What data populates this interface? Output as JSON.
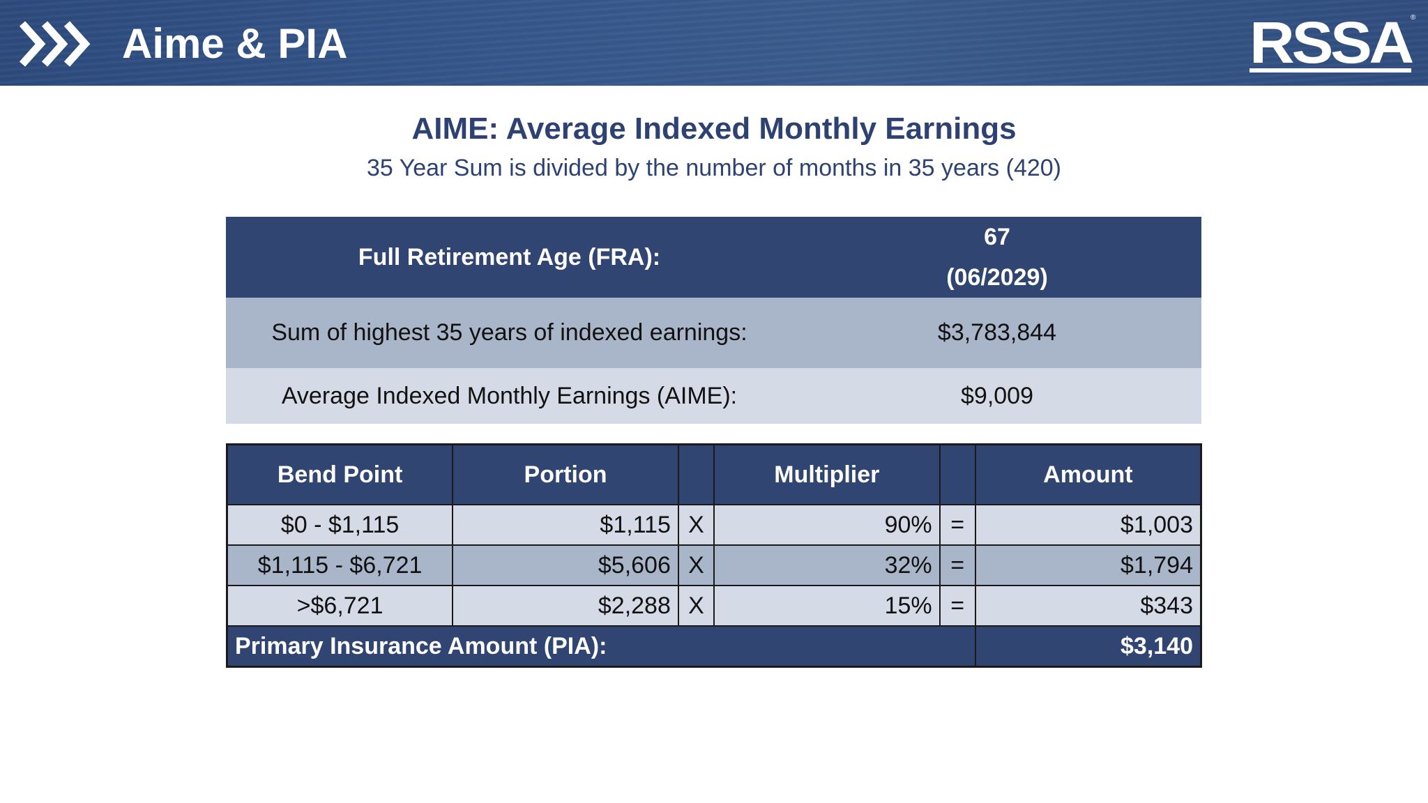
{
  "header": {
    "title": "Aime & PIA",
    "logo_text": "RSSA"
  },
  "heading": {
    "title": "AIME: Average Indexed Monthly Earnings",
    "subtitle": "35 Year Sum is divided by the number of months in 35 years (420)"
  },
  "summary": {
    "fra_label": "Full Retirement Age (FRA):",
    "fra_age": "67",
    "fra_date": "(06/2029)",
    "sum_label": "Sum of highest 35 years of indexed earnings:",
    "sum_value": "$3,783,844",
    "aime_label": "Average Indexed Monthly Earnings (AIME):",
    "aime_value": "$9,009"
  },
  "bend_table": {
    "headers": {
      "bend_point": "Bend Point",
      "portion": "Portion",
      "multiplier": "Multiplier",
      "amount": "Amount"
    },
    "rows": [
      {
        "bend_point": "$0 - $1,115",
        "portion": "$1,115",
        "op_x": "X",
        "multiplier": "90%",
        "op_eq": "=",
        "amount": "$1,003"
      },
      {
        "bend_point": "$1,115 - $6,721",
        "portion": "$5,606",
        "op_x": "X",
        "multiplier": "32%",
        "op_eq": "=",
        "amount": "$1,794"
      },
      {
        "bend_point": ">$6,721",
        "portion": "$2,288",
        "op_x": "X",
        "multiplier": "15%",
        "op_eq": "=",
        "amount": "$343"
      }
    ],
    "total_label": "Primary Insurance Amount (PIA):",
    "total_value": "$3,140"
  },
  "colors": {
    "navy": "#304571",
    "mid_row": "#a9b5c8",
    "light_row": "#d5dbe6",
    "heading_text": "#2d4272"
  }
}
